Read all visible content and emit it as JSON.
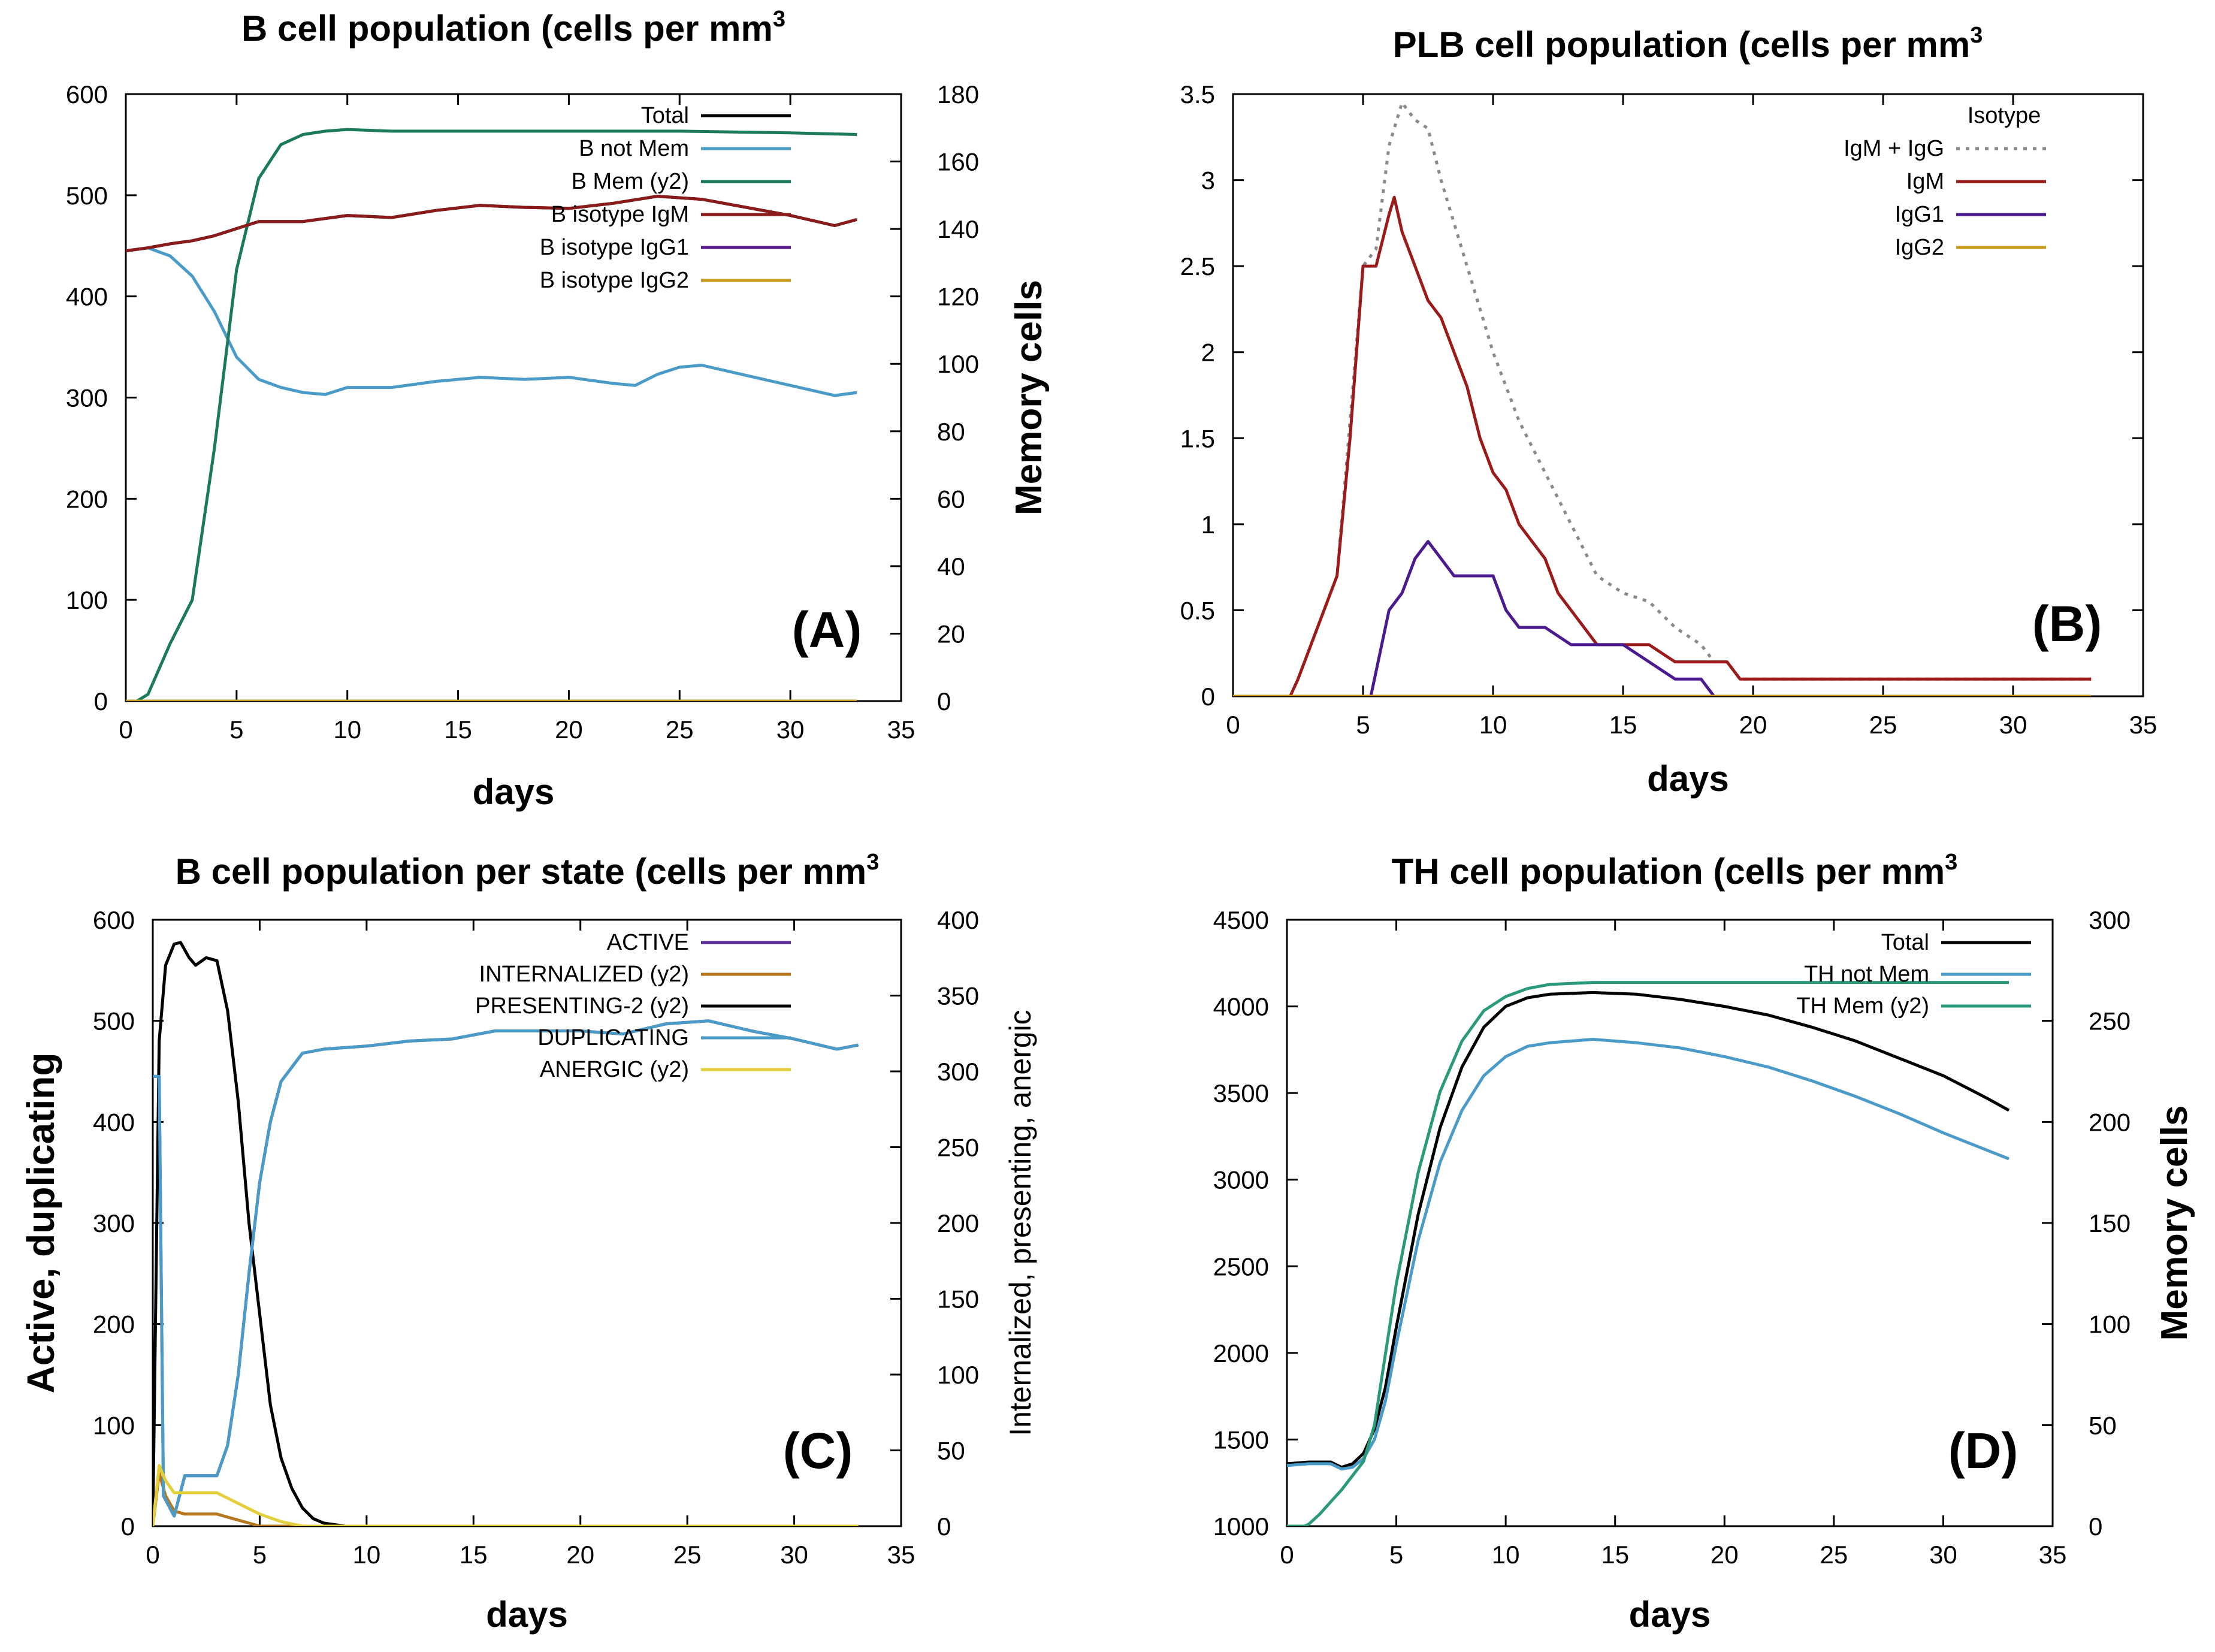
{
  "chart_data": [
    {
      "type": "line",
      "panel": "(A)",
      "title": "B cell population (cells per mm",
      "title_sup": "3",
      "xlabel": "days",
      "ylabel": "",
      "y2label": "Memory cells",
      "xlim": [
        0,
        35
      ],
      "ylim": [
        0,
        600
      ],
      "y2lim": [
        0,
        180
      ],
      "xticks": [
        0,
        5,
        10,
        15,
        20,
        25,
        30,
        35
      ],
      "yticks": [
        0,
        100,
        200,
        300,
        400,
        500,
        600
      ],
      "y2ticks": [
        0,
        20,
        40,
        60,
        80,
        100,
        120,
        140,
        160,
        180
      ],
      "legend_title": "",
      "legend_position": "top-right",
      "series": [
        {
          "name": "Total",
          "axis": "y",
          "color": "#000000",
          "style": "solid",
          "x": [
            0,
            1,
            2,
            3,
            4,
            5,
            6,
            8,
            10,
            12,
            14,
            16,
            18,
            20,
            22,
            24,
            26,
            28,
            30,
            32,
            33
          ],
          "y": [
            445,
            448,
            452,
            455,
            460,
            467,
            474,
            474,
            480,
            478,
            485,
            490,
            488,
            487,
            492,
            499,
            496,
            488,
            480,
            470,
            476
          ]
        },
        {
          "name": "B not Mem",
          "axis": "y",
          "color": "#4a9bc7",
          "style": "solid",
          "x": [
            0,
            1,
            2,
            3,
            4,
            5,
            6,
            7,
            8,
            9,
            10,
            12,
            14,
            16,
            18,
            20,
            22,
            23,
            24,
            25,
            26,
            28,
            30,
            32,
            33
          ],
          "y": [
            445,
            448,
            440,
            420,
            385,
            340,
            318,
            310,
            305,
            303,
            310,
            310,
            316,
            320,
            318,
            320,
            314,
            312,
            323,
            330,
            332,
            322,
            312,
            302,
            305
          ]
        },
        {
          "name": "B Mem (y2)",
          "axis": "y2",
          "color": "#1b7a5a",
          "style": "solid",
          "x": [
            0,
            0.5,
            1,
            2,
            3,
            4,
            5,
            6,
            7,
            8,
            9,
            10,
            12,
            15,
            20,
            25,
            30,
            33
          ],
          "y": [
            0,
            0,
            2,
            17,
            30,
            75,
            128,
            155,
            165,
            168,
            169,
            169.5,
            169,
            169,
            169,
            169,
            168.5,
            168
          ]
        },
        {
          "name": "B isotype IgM",
          "axis": "y",
          "color": "#8b1a1a",
          "style": "solid",
          "x": [
            0,
            1,
            2,
            3,
            4,
            5,
            6,
            8,
            10,
            12,
            14,
            16,
            18,
            20,
            22,
            24,
            26,
            28,
            30,
            32,
            33
          ],
          "y": [
            445,
            448,
            452,
            455,
            460,
            467,
            474,
            474,
            480,
            478,
            485,
            490,
            488,
            487,
            492,
            499,
            496,
            488,
            480,
            470,
            476
          ]
        },
        {
          "name": "B isotype IgG1",
          "axis": "y",
          "color": "#5b1a8f",
          "style": "solid",
          "x": [
            0,
            33
          ],
          "y": [
            0,
            0
          ]
        },
        {
          "name": "B isotype IgG2",
          "axis": "y",
          "color": "#c89a1e",
          "style": "solid",
          "x": [
            0,
            33
          ],
          "y": [
            0,
            0
          ]
        }
      ]
    },
    {
      "type": "line",
      "panel": "(B)",
      "title": "PLB cell population (cells per mm",
      "title_sup": "3",
      "xlabel": "days",
      "ylabel": "",
      "y2label": "",
      "xlim": [
        0,
        35
      ],
      "ylim": [
        0,
        3.5
      ],
      "xticks": [
        0,
        5,
        10,
        15,
        20,
        25,
        30,
        35
      ],
      "yticks": [
        0,
        0.5,
        1,
        1.5,
        2,
        2.5,
        3,
        3.5
      ],
      "legend_title": "Isotype",
      "legend_position": "top-right",
      "series": [
        {
          "name": "IgM + IgG",
          "axis": "y",
          "color": "#8a8a8a",
          "style": "dotted",
          "x": [
            0,
            2.2,
            2.5,
            3,
            4,
            5,
            5.5,
            6,
            6.5,
            7,
            7.5,
            8,
            9,
            10,
            11,
            12,
            13,
            14,
            15,
            16,
            17,
            18,
            18.5,
            19,
            19.5,
            33
          ],
          "y": [
            0,
            0,
            0.1,
            0.3,
            0.7,
            2.5,
            2.6,
            3.2,
            3.45,
            3.35,
            3.3,
            3.0,
            2.5,
            2.0,
            1.6,
            1.3,
            1.0,
            0.7,
            0.6,
            0.55,
            0.4,
            0.3,
            0.2,
            0.2,
            0.1,
            0.1
          ]
        },
        {
          "name": "IgM",
          "axis": "y",
          "color": "#9b1b1b",
          "style": "solid",
          "x": [
            0,
            2.2,
            2.5,
            3,
            4,
            4.5,
            5,
            5.5,
            6,
            6.2,
            6.5,
            7,
            7.5,
            8,
            8.5,
            9,
            9.5,
            10,
            10.5,
            11,
            11.5,
            12,
            12.5,
            13,
            13.5,
            14,
            14.5,
            15,
            16,
            17,
            18,
            18.5,
            19,
            19.5,
            33
          ],
          "y": [
            0,
            0,
            0.1,
            0.3,
            0.7,
            1.5,
            2.5,
            2.5,
            2.8,
            2.9,
            2.7,
            2.5,
            2.3,
            2.2,
            2.0,
            1.8,
            1.5,
            1.3,
            1.2,
            1.0,
            0.9,
            0.8,
            0.6,
            0.5,
            0.4,
            0.3,
            0.3,
            0.3,
            0.3,
            0.2,
            0.2,
            0.2,
            0.2,
            0.1,
            0.1
          ]
        },
        {
          "name": "IgG1",
          "axis": "y",
          "color": "#4b1a8f",
          "style": "solid",
          "x": [
            0,
            5.3,
            6,
            6.5,
            7,
            7.5,
            8,
            8.5,
            10,
            10.5,
            11,
            12,
            13,
            14,
            15,
            16,
            17,
            18,
            18.5,
            33
          ],
          "y": [
            0,
            0,
            0.5,
            0.6,
            0.8,
            0.9,
            0.8,
            0.7,
            0.7,
            0.5,
            0.4,
            0.4,
            0.3,
            0.3,
            0.3,
            0.2,
            0.1,
            0.1,
            0,
            0
          ]
        },
        {
          "name": "IgG2",
          "axis": "y",
          "color": "#c89a1e",
          "style": "solid",
          "x": [
            0,
            33
          ],
          "y": [
            0,
            0
          ]
        }
      ]
    },
    {
      "type": "line",
      "panel": "(C)",
      "title": "B cell population per state (cells per mm",
      "title_sup": "3",
      "xlabel": "days",
      "ylabel": "Active, duplicating",
      "y2label": "Internalized, presenting, anergic",
      "xlim": [
        0,
        35
      ],
      "ylim": [
        0,
        600
      ],
      "y2lim": [
        0,
        400
      ],
      "xticks": [
        0,
        5,
        10,
        15,
        20,
        25,
        30,
        35
      ],
      "yticks": [
        0,
        100,
        200,
        300,
        400,
        500,
        600
      ],
      "y2ticks": [
        0,
        50,
        100,
        150,
        200,
        250,
        300,
        350,
        400
      ],
      "legend_title": "",
      "legend_position": "top-right",
      "series": [
        {
          "name": "ACTIVE",
          "axis": "y",
          "color": "#5a2a9a",
          "style": "solid",
          "x": [
            0,
            0.3,
            0.5,
            1,
            1.5,
            2,
            3,
            3.5,
            4,
            4.5,
            5,
            5.5,
            6,
            7,
            8,
            10,
            12,
            14,
            16,
            18,
            20,
            22,
            24,
            26,
            28,
            30,
            32,
            33
          ],
          "y": [
            445,
            445,
            30,
            10,
            50,
            50,
            50,
            80,
            150,
            250,
            340,
            400,
            440,
            468,
            472,
            475,
            480,
            482,
            490,
            490,
            490,
            487,
            497,
            500,
            490,
            482,
            472,
            476
          ]
        },
        {
          "name": "INTERNALIZED (y2)",
          "axis": "y2",
          "color": "#b5761e",
          "style": "solid",
          "x": [
            0,
            0.3,
            0.6,
            1,
            1.5,
            2,
            3,
            4,
            4.5,
            5,
            33
          ],
          "y": [
            0,
            35,
            20,
            10,
            8,
            8,
            8,
            4,
            2,
            0,
            0
          ]
        },
        {
          "name": "PRESENTING-2 (y2)",
          "axis": "y2",
          "color": "#000000",
          "style": "solid",
          "x": [
            0,
            0.3,
            0.6,
            1,
            1.3,
            1.7,
            2,
            2.5,
            3,
            3.5,
            4,
            4.5,
            5,
            5.5,
            6,
            6.5,
            7,
            7.5,
            8,
            9,
            33
          ],
          "y": [
            0,
            320,
            370,
            384,
            385,
            375,
            370,
            375,
            373,
            340,
            280,
            200,
            140,
            80,
            45,
            25,
            12,
            5,
            2,
            0,
            0
          ]
        },
        {
          "name": "DUPLICATING",
          "axis": "y",
          "color": "#4a9bc7",
          "style": "solid",
          "x": [
            0,
            0.3,
            0.5,
            1,
            1.5,
            2,
            3,
            3.5,
            4,
            4.5,
            5,
            5.5,
            6,
            7,
            8,
            10,
            12,
            14,
            16,
            18,
            20,
            22,
            24,
            26,
            28,
            30,
            32,
            33
          ],
          "y": [
            445,
            445,
            30,
            10,
            50,
            50,
            50,
            80,
            150,
            250,
            340,
            400,
            440,
            468,
            472,
            475,
            480,
            482,
            490,
            490,
            490,
            487,
            497,
            500,
            490,
            482,
            472,
            476
          ]
        },
        {
          "name": "ANERGIC (y2)",
          "axis": "y2",
          "color": "#e3cf3a",
          "style": "solid",
          "x": [
            0,
            0.3,
            0.6,
            1,
            2,
            3,
            4,
            5,
            6,
            7,
            33
          ],
          "y": [
            0,
            40,
            30,
            22,
            22,
            22,
            15,
            8,
            3,
            0,
            0
          ]
        }
      ]
    },
    {
      "type": "line",
      "panel": "(D)",
      "title": "TH cell population (cells per mm",
      "title_sup": "3",
      "xlabel": "days",
      "ylabel": "",
      "y2label": "Memory cells",
      "xlim": [
        0,
        35
      ],
      "ylim": [
        1000,
        4500
      ],
      "y2lim": [
        0,
        300
      ],
      "xticks": [
        0,
        5,
        10,
        15,
        20,
        25,
        30,
        35
      ],
      "yticks": [
        1000,
        1500,
        2000,
        2500,
        3000,
        3500,
        4000,
        4500
      ],
      "y2ticks": [
        0,
        50,
        100,
        150,
        200,
        250,
        300
      ],
      "legend_title": "",
      "legend_position": "top-right",
      "series": [
        {
          "name": "Total",
          "axis": "y",
          "color": "#000000",
          "style": "solid",
          "x": [
            0,
            1,
            2,
            2.5,
            3,
            3.5,
            4,
            4.5,
            5,
            6,
            7,
            8,
            9,
            10,
            11,
            12,
            14,
            16,
            18,
            20,
            22,
            24,
            26,
            28,
            30,
            32,
            33
          ],
          "y": [
            1360,
            1370,
            1370,
            1340,
            1360,
            1420,
            1560,
            1800,
            2150,
            2800,
            3300,
            3650,
            3880,
            4000,
            4050,
            4070,
            4080,
            4070,
            4040,
            4000,
            3950,
            3880,
            3800,
            3700,
            3600,
            3470,
            3400
          ]
        },
        {
          "name": "TH not Mem",
          "axis": "y",
          "color": "#4a9bc7",
          "style": "solid",
          "x": [
            0,
            1,
            2,
            2.5,
            3,
            3.5,
            4,
            4.5,
            5,
            6,
            7,
            8,
            9,
            10,
            11,
            12,
            14,
            16,
            18,
            20,
            22,
            24,
            26,
            28,
            30,
            32,
            33
          ],
          "y": [
            1350,
            1360,
            1360,
            1330,
            1340,
            1390,
            1500,
            1720,
            2050,
            2650,
            3100,
            3400,
            3600,
            3710,
            3770,
            3790,
            3810,
            3790,
            3760,
            3710,
            3650,
            3570,
            3480,
            3380,
            3270,
            3170,
            3120
          ]
        },
        {
          "name": "TH Mem (y2)",
          "axis": "y2",
          "color": "#2a9a7a",
          "style": "solid",
          "x": [
            0,
            0.8,
            1,
            1.5,
            2,
            2.5,
            3,
            3.5,
            4,
            4.5,
            5,
            6,
            7,
            8,
            9,
            10,
            11,
            12,
            14,
            16,
            18,
            20,
            22,
            24,
            26,
            28,
            30,
            32,
            33
          ],
          "y": [
            0,
            0,
            1,
            6,
            12,
            18,
            25,
            32,
            50,
            85,
            120,
            175,
            215,
            240,
            255,
            262,
            266,
            268,
            269,
            269,
            269,
            269,
            269,
            269,
            269,
            269,
            269,
            269,
            269
          ]
        }
      ]
    }
  ]
}
